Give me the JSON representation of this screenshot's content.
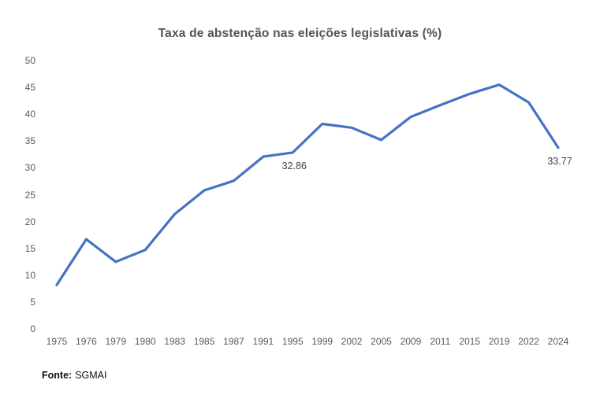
{
  "chart_data": {
    "type": "line",
    "title": "Taxa de abstenção nas eleições legislativas (%)",
    "categories": [
      "1975",
      "1976",
      "1979",
      "1980",
      "1983",
      "1985",
      "1987",
      "1991",
      "1995",
      "1999",
      "2002",
      "2005",
      "2009",
      "2011",
      "2015",
      "2019",
      "2022",
      "2024"
    ],
    "values": [
      8.2,
      16.7,
      12.5,
      14.7,
      21.4,
      25.8,
      27.6,
      32.1,
      32.86,
      38.2,
      37.5,
      35.2,
      39.5,
      41.7,
      43.8,
      45.5,
      42.2,
      33.77
    ],
    "xlabel": "",
    "ylabel": "",
    "ylim": [
      0,
      50
    ],
    "yticks": [
      0,
      5,
      10,
      15,
      20,
      25,
      30,
      35,
      40,
      45,
      50
    ],
    "grid": false,
    "legend": "none",
    "line_color": "#4472C4",
    "annotations": [
      {
        "category": "1995",
        "text": "32.86"
      },
      {
        "category": "2024",
        "text": "33.77"
      }
    ]
  },
  "source": {
    "label": "Fonte:",
    "value": "SGMAI"
  }
}
